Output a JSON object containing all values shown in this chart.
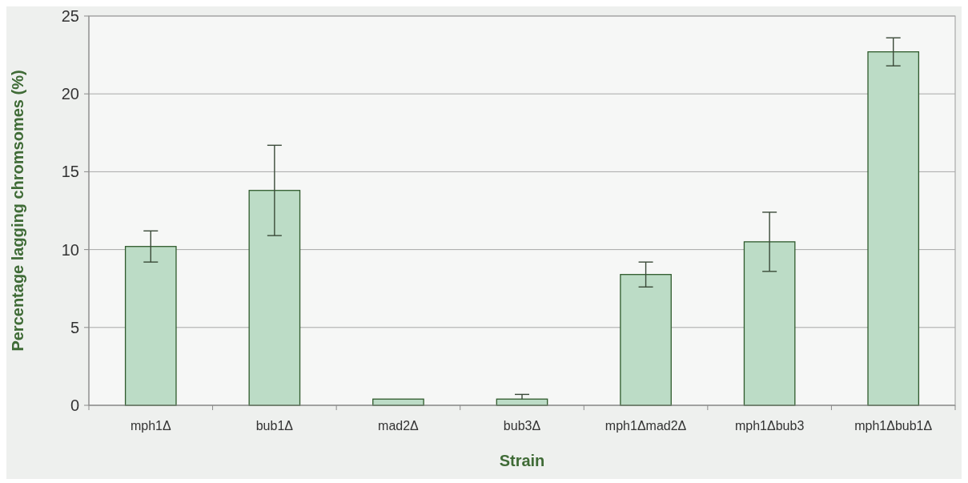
{
  "chart_data": {
    "type": "bar",
    "xlabel": "Strain",
    "ylabel": "Percentage lagging chromsomes (%)",
    "categories": [
      "mph1Δ",
      "bub1Δ",
      "mad2Δ",
      "bub3Δ",
      "mph1Δmad2Δ",
      "mph1Δbub3",
      "mph1Δbub1Δ"
    ],
    "values": [
      10.2,
      13.8,
      0.4,
      0.4,
      8.4,
      10.5,
      22.7
    ],
    "errors": [
      1.0,
      2.9,
      null,
      [
        0.4,
        0.7
      ],
      0.8,
      1.9,
      0.9
    ],
    "color": "#bcdcc6",
    "ylim": [
      0,
      25
    ],
    "yticks": [
      0,
      5,
      10,
      15,
      20,
      25
    ],
    "grid": "y"
  }
}
